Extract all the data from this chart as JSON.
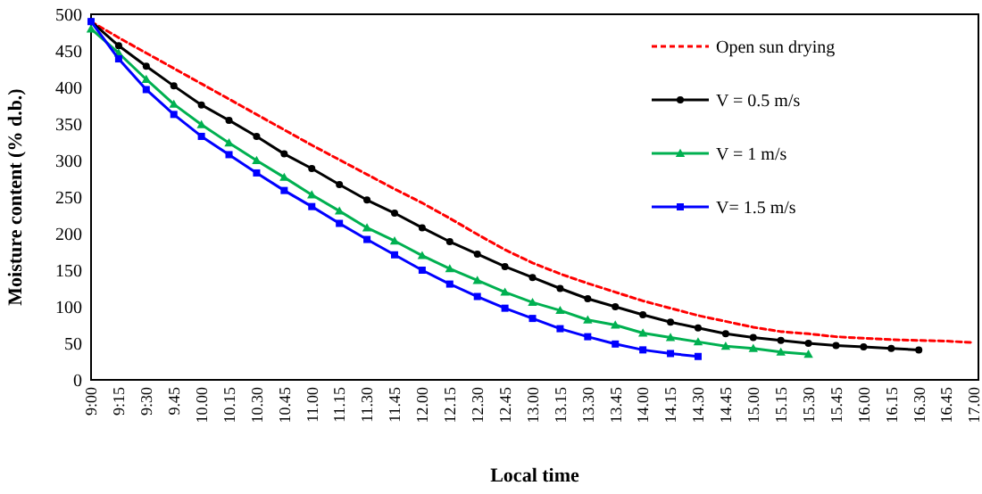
{
  "chart_data": {
    "type": "line",
    "xlabel": "Local time",
    "ylabel": "Moisture content (% d.b.)",
    "categories": [
      "9:00",
      "9:15",
      "9:30",
      "9.45",
      "10.00",
      "10.15",
      "10.30",
      "10.45",
      "11.00",
      "11.15",
      "11.30",
      "11.45",
      "12.00",
      "12.15",
      "12.30",
      "12.45",
      "13.00",
      "13.15",
      "13.30",
      "13.45",
      "14.00",
      "14.15",
      "14.30",
      "14.45",
      "15.00",
      "15.15",
      "15.30",
      "15.45",
      "16.00",
      "16.15",
      "16.30",
      "16.45",
      "17.00"
    ],
    "ylim": [
      0,
      500
    ],
    "yticks": [
      0,
      50,
      100,
      150,
      200,
      250,
      300,
      350,
      400,
      450,
      500
    ],
    "grid": false,
    "legend": "top right",
    "series": [
      {
        "name": "Open sun drying",
        "color": "#ff0000",
        "marker": "none",
        "line_style": "dashed",
        "values": [
          490,
          468,
          447,
          426,
          405,
          384,
          363,
          342,
          321,
          301,
          281,
          261,
          242,
          221,
          199,
          178,
          160,
          145,
          132,
          120,
          108,
          98,
          88,
          80,
          72,
          66,
          63,
          59,
          57,
          55,
          54,
          53,
          51
        ]
      },
      {
        "name": "V = 0.5 m/s",
        "color": "#000000",
        "marker": "circle",
        "line_style": "solid",
        "values": [
          490,
          457,
          429,
          402,
          376,
          355,
          333,
          309,
          289,
          267,
          246,
          228,
          208,
          189,
          172,
          155,
          140,
          125,
          111,
          100,
          89,
          79,
          71,
          63,
          58,
          54,
          50,
          47,
          45,
          43,
          41,
          null,
          null
        ]
      },
      {
        "name": "V = 1 m/s",
        "color": "#00b050",
        "marker": "triangle",
        "line_style": "solid",
        "values": [
          480,
          447,
          411,
          377,
          349,
          324,
          300,
          277,
          253,
          231,
          208,
          190,
          170,
          152,
          136,
          120,
          106,
          95,
          82,
          75,
          64,
          58,
          52,
          46,
          43,
          38,
          35,
          null,
          null,
          null,
          null,
          null,
          null
        ]
      },
      {
        "name": "V= 1.5 m/s",
        "color": "#0000ff",
        "marker": "square",
        "line_style": "solid",
        "values": [
          490,
          439,
          397,
          363,
          333,
          308,
          283,
          259,
          237,
          214,
          192,
          171,
          150,
          131,
          114,
          98,
          84,
          70,
          59,
          49,
          41,
          36,
          32,
          null,
          null,
          null,
          null,
          null,
          null,
          null,
          null,
          null,
          null
        ]
      }
    ]
  }
}
